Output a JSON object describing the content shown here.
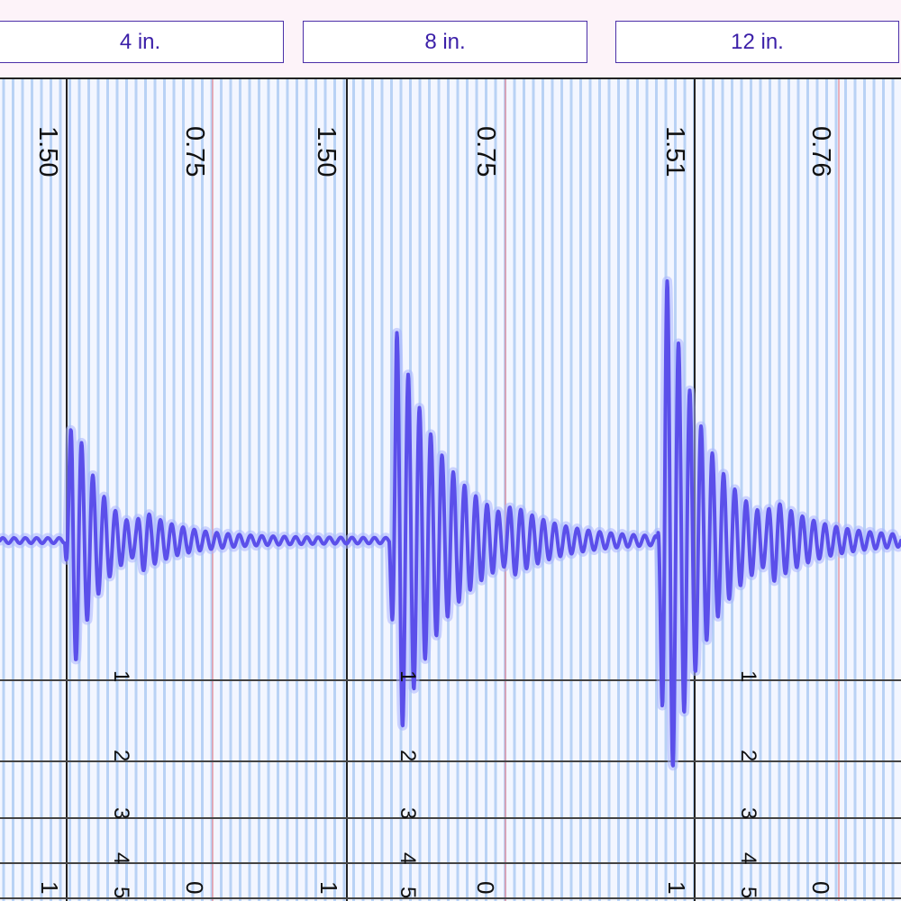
{
  "tabs": [
    {
      "label": "4 in."
    },
    {
      "label": "8 in."
    },
    {
      "label": "12 in."
    }
  ],
  "panels": [
    {
      "marker_left": "1.50",
      "marker_right": "0.75",
      "ruler_bottom_left": "1",
      "ruler_bottom_right": "0"
    },
    {
      "marker_left": "1.50",
      "marker_right": "0.75",
      "ruler_bottom_left": "1",
      "ruler_bottom_right": "0"
    },
    {
      "marker_left": "1.51",
      "marker_right": "0.76",
      "ruler_bottom_left": "1",
      "ruler_bottom_right": "0"
    }
  ],
  "scale_labels": [
    "1",
    "2",
    "3",
    "4",
    "5"
  ],
  "colors": {
    "background": "#f3f6ff",
    "grid_line": "#b9d2f5",
    "red_marker": "#e58a96",
    "waveform": "#5b4fea",
    "waveform_glow": "#aab4ff",
    "tab_text": "#3b1fa8",
    "axis": "#222222"
  }
}
